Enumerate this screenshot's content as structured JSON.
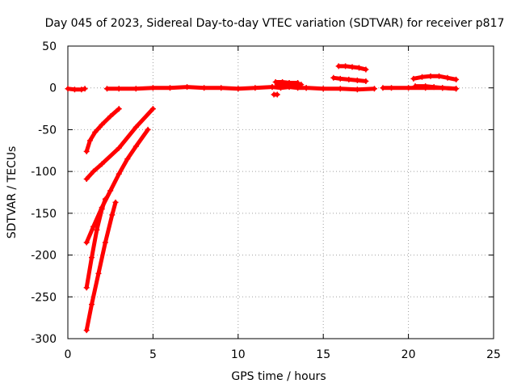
{
  "chart_data": {
    "type": "scatter",
    "title": "Day 045 of 2023, Sidereal Day-to-day VTEC variation (SDTVAR) for receiver p817",
    "xlabel": "GPS time / hours",
    "ylabel": "SDTVAR / TECUs",
    "xlim": [
      0,
      25
    ],
    "ylim": [
      -300,
      50
    ],
    "x_ticks": [
      0,
      5,
      10,
      15,
      20,
      25
    ],
    "y_ticks": [
      50,
      0,
      -50,
      -100,
      -150,
      -200,
      -250,
      -300
    ],
    "grid": true,
    "marker": "+",
    "series_color": "#ff0000",
    "segments": [
      {
        "name": "baseline-start",
        "x": [
          0.0,
          0.4,
          0.8,
          1.0
        ],
        "y": [
          -1,
          -2,
          -2,
          -1
        ]
      },
      {
        "name": "baseline-1-12",
        "x": [
          2.3,
          3,
          4,
          5,
          6,
          7,
          8,
          9,
          10,
          11,
          12
        ],
        "y": [
          -1,
          -1,
          -1,
          0,
          0,
          1,
          0,
          0,
          -1,
          0,
          1
        ]
      },
      {
        "name": "baseline-12-14",
        "x": [
          12.0,
          12.5,
          13.0,
          13.5,
          14.0
        ],
        "y": [
          1,
          0,
          1,
          0,
          0
        ]
      },
      {
        "name": "baseline-14-18",
        "x": [
          14.0,
          15.0,
          16.0,
          17.0,
          18.0
        ],
        "y": [
          0,
          -1,
          -1,
          -2,
          -1
        ]
      },
      {
        "name": "baseline-18-23",
        "x": [
          18.5,
          19.0,
          20.0,
          21.0,
          22.0,
          22.8
        ],
        "y": [
          0,
          0,
          0,
          0,
          0,
          -1
        ]
      },
      {
        "name": "arc-12-low",
        "x": [
          12.1,
          12.3
        ],
        "y": [
          -8,
          -8
        ]
      },
      {
        "name": "arc-12-upper",
        "x": [
          12.2,
          12.6,
          13.0,
          13.5
        ],
        "y": [
          7,
          7,
          6,
          6
        ]
      },
      {
        "name": "arc-12-mid",
        "x": [
          12.3,
          12.8,
          13.3,
          13.7
        ],
        "y": [
          4,
          4,
          3,
          4
        ]
      },
      {
        "name": "arc-16-upper",
        "x": [
          15.9,
          16.3,
          16.7,
          17.1,
          17.5
        ],
        "y": [
          26,
          26,
          25,
          24,
          22
        ]
      },
      {
        "name": "arc-16-lower",
        "x": [
          15.6,
          16.0,
          16.5,
          17.0,
          17.5
        ],
        "y": [
          12,
          11,
          10,
          9,
          8
        ]
      },
      {
        "name": "arc-21",
        "x": [
          20.3,
          20.8,
          21.3,
          21.8,
          22.3,
          22.8
        ],
        "y": [
          11,
          13,
          14,
          14,
          12,
          10
        ]
      },
      {
        "name": "arc-21-low",
        "x": [
          20.4,
          21.0,
          21.5,
          22.0,
          22.8
        ],
        "y": [
          2,
          2,
          1,
          0,
          -1
        ]
      },
      {
        "name": "descent-a",
        "x": [
          1.1,
          1.3,
          1.6,
          2.0,
          2.5,
          3.0
        ],
        "y": [
          -76,
          -63,
          -53,
          -44,
          -34,
          -25
        ]
      },
      {
        "name": "descent-b",
        "x": [
          1.1,
          1.5,
          2.0,
          3.0,
          4.0,
          5.0
        ],
        "y": [
          -109,
          -100,
          -91,
          -72,
          -47,
          -25
        ]
      },
      {
        "name": "descent-c",
        "x": [
          1.1,
          1.5,
          2.0,
          2.5,
          3.0,
          3.5,
          4.0,
          4.7
        ],
        "y": [
          -185,
          -166,
          -143,
          -123,
          -103,
          -85,
          -70,
          -50
        ]
      },
      {
        "name": "descent-d",
        "x": [
          1.1,
          1.4,
          1.7,
          2.0,
          2.2
        ],
        "y": [
          -239,
          -203,
          -170,
          -145,
          -133
        ]
      },
      {
        "name": "descent-e",
        "x": [
          1.1,
          1.4,
          1.8,
          2.2,
          2.6,
          2.8
        ],
        "y": [
          -290,
          -259,
          -222,
          -185,
          -152,
          -137
        ]
      }
    ]
  }
}
